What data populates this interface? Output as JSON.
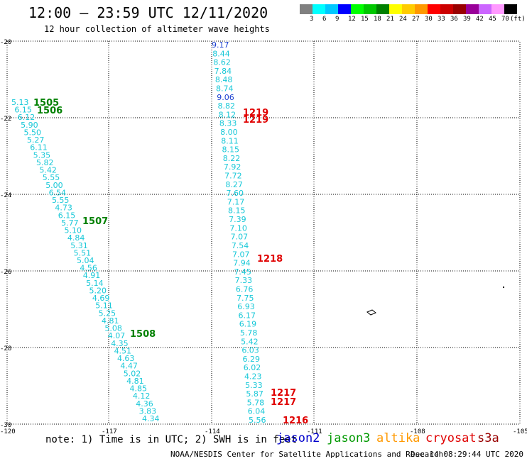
{
  "header": {
    "title": "12:00 – 23:59 UTC 12/11/2020",
    "subtitle": "12 hour collection of altimeter wave heights"
  },
  "legend": {
    "colors": [
      "#808080",
      "#00ffff",
      "#00c8ff",
      "#0000ff",
      "#00ff00",
      "#00c800",
      "#008000",
      "#ffff00",
      "#ffcc00",
      "#ff9900",
      "#ff0000",
      "#cc0000",
      "#990000",
      "#990099",
      "#cc66ff",
      "#ff99ff",
      "#000000"
    ],
    "labels": [
      "3",
      "6",
      "9",
      "12",
      "15",
      "18",
      "21",
      "24",
      "27",
      "30",
      "33",
      "36",
      "39",
      "42",
      "45",
      "70",
      "(ft)"
    ]
  },
  "axes": {
    "lat_labels": [
      "-20",
      "-22",
      "-24",
      "-26",
      "-28",
      "-30"
    ],
    "lon_labels": [
      "-120",
      "-117",
      "-114",
      "-111",
      "-108",
      "-105"
    ]
  },
  "track_west": {
    "values": [
      "5.13",
      "6.15",
      "6.12",
      "5.90",
      "5.50",
      "5.27",
      "6.11",
      "5.35",
      "5.82",
      "5.42",
      "5.55",
      "5.00",
      "6.54",
      "5.55",
      "4.73",
      "6.15",
      "5.77",
      "5.10",
      "4.84",
      "5.31",
      "5.51",
      "5.04",
      "4.56",
      "4.91",
      "5.14",
      "5.20",
      "4.69",
      "5.11",
      "5.25",
      "4.81",
      "5.08",
      "4.07",
      "4.35",
      "4.51",
      "4.63",
      "4.47",
      "5.02",
      "4.81",
      "4.85",
      "4.12",
      "4.36",
      "3.83",
      "4.34"
    ]
  },
  "track_east": {
    "values": [
      "9.17",
      "8.44",
      "8.62",
      "7.84",
      "8.48",
      "8.74",
      "9.06",
      "8.82",
      "8.12",
      "8.33",
      "8.00",
      "8.11",
      "8.15",
      "8.22",
      "7.92",
      "7.72",
      "8.27",
      "7.60",
      "7.17",
      "8.15",
      "7.39",
      "7.10",
      "7.07",
      "7.54",
      "7.07",
      "7.94",
      "7.45",
      "7.33",
      "6.76",
      "7.75",
      "6.93",
      "6.17",
      "6.19",
      "5.78",
      "5.42",
      "6.03",
      "6.29",
      "6.02",
      "4.23",
      "5.33",
      "5.87",
      "5.78",
      "6.04",
      "5.56"
    ]
  },
  "time_labels": [
    {
      "text": "1505",
      "color": "#008000"
    },
    {
      "text": "1506",
      "color": "#008000"
    },
    {
      "text": "1507",
      "color": "#008000"
    },
    {
      "text": "1508",
      "color": "#008000"
    },
    {
      "text": "1219",
      "color": "#e00000"
    },
    {
      "text": "1219",
      "color": "#e00000"
    },
    {
      "text": "1218",
      "color": "#e00000"
    },
    {
      "text": "1217",
      "color": "#e00000"
    },
    {
      "text": "1217",
      "color": "#e00000"
    },
    {
      "text": "1216",
      "color": "#e00000"
    }
  ],
  "footer": {
    "note": "note: 1) Time is in UTC; 2) SWH is in feet",
    "missions": [
      {
        "name": "jason2",
        "color": "#0000cc"
      },
      {
        "name": "jason3",
        "color": "#009900"
      },
      {
        "name": "altika",
        "color": "#ff9900"
      },
      {
        "name": "cryosat",
        "color": "#e00000"
      },
      {
        "name": "s3a",
        "color": "#990000"
      }
    ],
    "credit": "NOAA/NESDIS Center for Satellite Applications and Research",
    "timestamp": "Dec 14 08:29:44 UTC 2020"
  }
}
